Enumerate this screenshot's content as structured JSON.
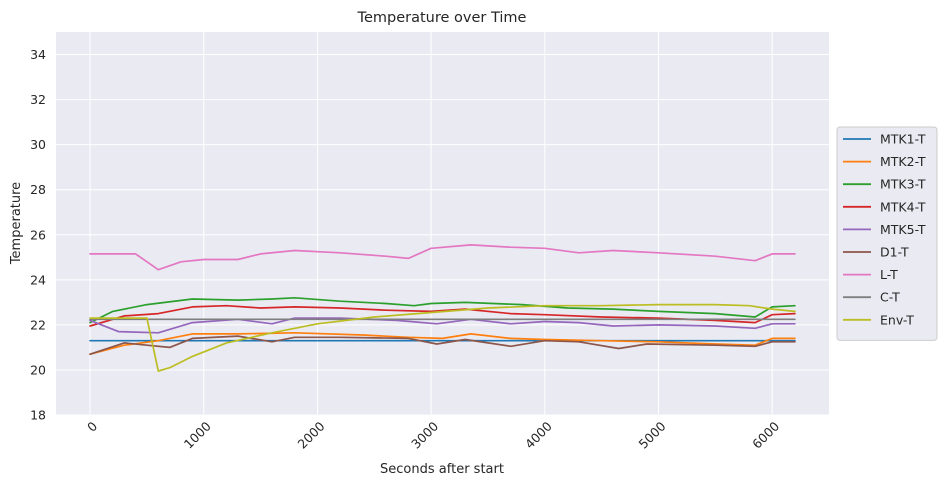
{
  "chart_data": {
    "type": "line",
    "title": "Temperature over Time",
    "xlabel": "Seconds after start",
    "ylabel": "Temperature",
    "xlim": [
      -300,
      6500
    ],
    "ylim": [
      18,
      35
    ],
    "xticks": [
      0,
      1000,
      2000,
      3000,
      4000,
      5000,
      6000
    ],
    "xtick_labels": [
      "0",
      "1000",
      "2000",
      "3000",
      "4000",
      "5000",
      "6000"
    ],
    "yticks": [
      18,
      20,
      22,
      24,
      26,
      28,
      30,
      32,
      34
    ],
    "ytick_labels": [
      "18",
      "20",
      "22",
      "24",
      "26",
      "28",
      "30",
      "32",
      "34"
    ],
    "grid": true,
    "legend_position": "right",
    "series": [
      {
        "name": "MTK1-T",
        "color": "#1f77b4",
        "x": [
          0,
          6200
        ],
        "y": [
          21.3,
          21.3
        ]
      },
      {
        "name": "MTK2-T",
        "color": "#ff7f0e",
        "x": [
          0,
          300,
          600,
          900,
          1300,
          1800,
          2400,
          2800,
          3100,
          3350,
          3700,
          4000,
          4500,
          5000,
          5500,
          5850,
          6000,
          6200
        ],
        "y": [
          20.7,
          21.1,
          21.3,
          21.6,
          21.6,
          21.65,
          21.55,
          21.45,
          21.4,
          21.6,
          21.4,
          21.35,
          21.3,
          21.25,
          21.15,
          21.1,
          21.4,
          21.4
        ]
      },
      {
        "name": "MTK3-T",
        "color": "#2ca02c",
        "x": [
          0,
          200,
          500,
          900,
          1300,
          1600,
          1800,
          2200,
          2600,
          2850,
          3000,
          3300,
          3800,
          4200,
          4600,
          5000,
          5500,
          5850,
          6000,
          6200
        ],
        "y": [
          22.1,
          22.6,
          22.9,
          23.15,
          23.1,
          23.15,
          23.2,
          23.05,
          22.95,
          22.85,
          22.95,
          23.0,
          22.9,
          22.75,
          22.7,
          22.6,
          22.5,
          22.35,
          22.8,
          22.85
        ]
      },
      {
        "name": "MTK4-T",
        "color": "#d62728",
        "x": [
          0,
          300,
          600,
          900,
          1200,
          1500,
          1800,
          2200,
          2600,
          3000,
          3300,
          3700,
          4000,
          4500,
          5000,
          5500,
          5850,
          6000,
          6200
        ],
        "y": [
          21.95,
          22.4,
          22.5,
          22.8,
          22.85,
          22.75,
          22.8,
          22.75,
          22.65,
          22.6,
          22.7,
          22.5,
          22.45,
          22.35,
          22.3,
          22.2,
          22.1,
          22.45,
          22.5
        ]
      },
      {
        "name": "MTK5-T",
        "color": "#9467bd",
        "x": [
          0,
          250,
          600,
          900,
          1300,
          1600,
          1800,
          2200,
          2700,
          3050,
          3350,
          3700,
          4000,
          4300,
          4600,
          5000,
          5500,
          5850,
          6000,
          6200
        ],
        "y": [
          22.2,
          21.7,
          21.65,
          22.1,
          22.25,
          22.05,
          22.3,
          22.3,
          22.2,
          22.05,
          22.25,
          22.05,
          22.15,
          22.1,
          21.95,
          22.0,
          21.95,
          21.85,
          22.05,
          22.05
        ]
      },
      {
        "name": "D1-T",
        "color": "#8c564b",
        "x": [
          0,
          300,
          500,
          700,
          900,
          1300,
          1600,
          1800,
          2200,
          2800,
          3050,
          3300,
          3700,
          4000,
          4300,
          4650,
          4900,
          5500,
          5850,
          6000,
          6200
        ],
        "y": [
          20.7,
          21.2,
          21.1,
          21.0,
          21.4,
          21.5,
          21.25,
          21.45,
          21.45,
          21.4,
          21.15,
          21.35,
          21.05,
          21.3,
          21.25,
          20.95,
          21.15,
          21.1,
          21.05,
          21.25,
          21.25
        ]
      },
      {
        "name": "L-T",
        "color": "#e377c2",
        "x": [
          0,
          400,
          600,
          800,
          1000,
          1300,
          1500,
          1800,
          2200,
          2600,
          2800,
          3000,
          3350,
          3700,
          4000,
          4300,
          4600,
          5000,
          5500,
          5850,
          6000,
          6200
        ],
        "y": [
          25.15,
          25.15,
          24.45,
          24.8,
          24.9,
          24.9,
          25.15,
          25.3,
          25.2,
          25.05,
          24.95,
          25.4,
          25.55,
          25.45,
          25.4,
          25.2,
          25.3,
          25.2,
          25.05,
          24.85,
          25.15,
          25.15
        ]
      },
      {
        "name": "C-T",
        "color": "#7f7f7f",
        "x": [
          0,
          6200
        ],
        "y": [
          22.25,
          22.25
        ]
      },
      {
        "name": "Env-T",
        "color": "#bcbd22",
        "x": [
          0,
          400,
          500,
          600,
          700,
          900,
          1200,
          1600,
          2000,
          2500,
          3000,
          3500,
          4000,
          4500,
          5000,
          5500,
          5800,
          6000,
          6200
        ],
        "y": [
          22.3,
          22.3,
          22.3,
          19.95,
          20.1,
          20.6,
          21.2,
          21.65,
          22.05,
          22.35,
          22.55,
          22.75,
          22.85,
          22.85,
          22.9,
          22.9,
          22.85,
          22.7,
          22.6
        ]
      }
    ]
  }
}
